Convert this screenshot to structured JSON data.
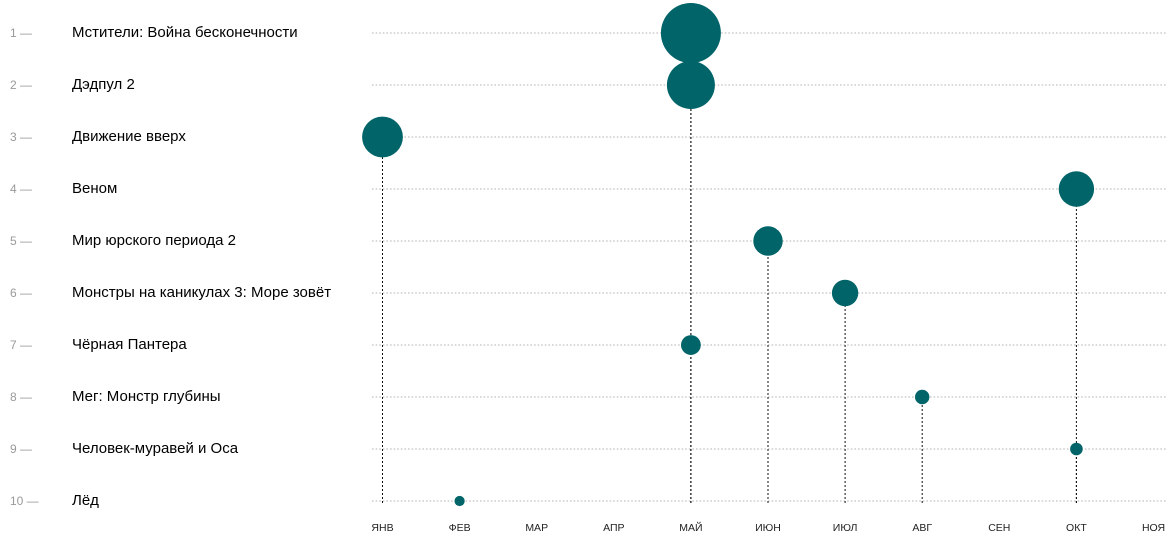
{
  "chart_data": {
    "type": "scatter",
    "title": "",
    "xlabel": "",
    "ylabel": "",
    "bubble_color": "#006469",
    "months": [
      "ЯНВ",
      "ФЕВ",
      "МАР",
      "АПР",
      "МАЙ",
      "ИЮН",
      "ИЮЛ",
      "АВГ",
      "СЕН",
      "ОКТ",
      "НОЯ"
    ],
    "movies": [
      {
        "rank": "1 —",
        "title": "Мстители: Война бесконечности",
        "month_index": 4,
        "size": 1.0
      },
      {
        "rank": "2 —",
        "title": "Дэдпул 2",
        "month_index": 4,
        "size": 0.8
      },
      {
        "rank": "3 —",
        "title": "Движение вверх",
        "month_index": 0,
        "size": 0.68
      },
      {
        "rank": "4 —",
        "title": "Веном",
        "month_index": 9,
        "size": 0.59
      },
      {
        "rank": "5 —",
        "title": "Мир юрского периода 2",
        "month_index": 5,
        "size": 0.49
      },
      {
        "rank": "6 —",
        "title": "Монстры на каникулах 3: Море зовёт",
        "month_index": 6,
        "size": 0.44
      },
      {
        "rank": "7 —",
        "title": "Чёрная Пантера",
        "month_index": 4,
        "size": 0.33
      },
      {
        "rank": "8 —",
        "title": "Мег: Монстр глубины",
        "month_index": 7,
        "size": 0.24
      },
      {
        "rank": "9 —",
        "title": "Человек-муравей и Оса",
        "month_index": 9,
        "size": 0.21
      },
      {
        "rank": "10 —",
        "title": "Лёд",
        "month_index": 1,
        "size": 0.17
      }
    ]
  }
}
